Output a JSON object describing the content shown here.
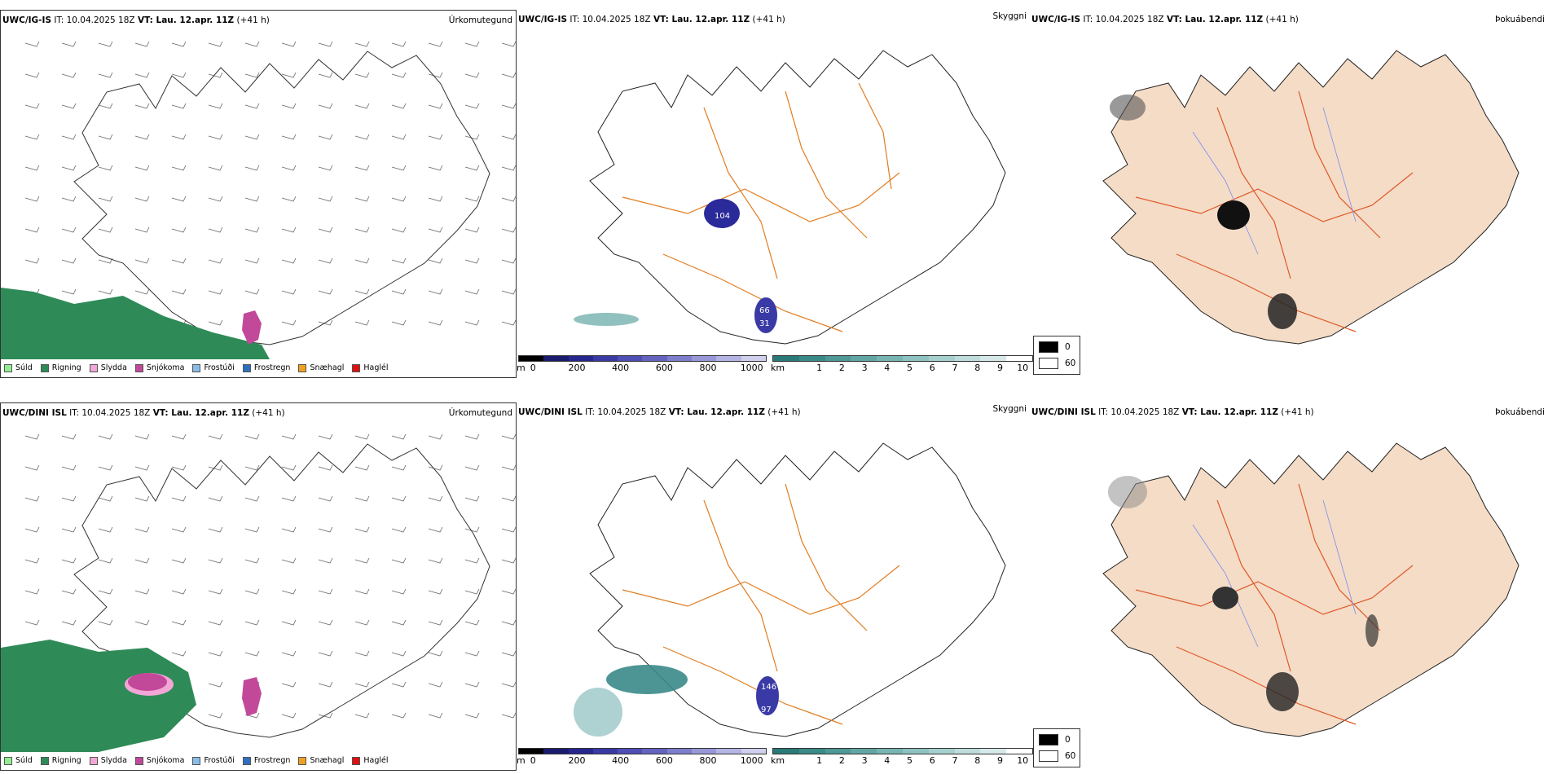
{
  "figure": {
    "rows": [
      {
        "model": "UWC/IG-IS",
        "init": "IT: 10.04.2025 18Z",
        "valid": "VT: Lau. 12.apr. 11Z",
        "lead": "(+41 h)"
      },
      {
        "model": "UWC/DINI ISL",
        "init": "IT: 10.04.2025 18Z",
        "valid": "VT: Lau. 12.apr. 11Z",
        "lead": "(+41 h)"
      }
    ],
    "panel_names": {
      "precip_type": "Úrkomutegund",
      "cloud": "Skyggni",
      "fog": "Þokuábendi"
    }
  },
  "precip_legend": [
    {
      "label": "Súld",
      "color": "#90ee90"
    },
    {
      "label": "Rigning",
      "color": "#2e8b57"
    },
    {
      "label": "Slydda",
      "color": "#f4a6d7"
    },
    {
      "label": "Snjókoma",
      "color": "#c2489a"
    },
    {
      "label": "Frostúði",
      "color": "#87bde8"
    },
    {
      "label": "Frostregn",
      "color": "#2f6fc0"
    },
    {
      "label": "Snæhagl",
      "color": "#f0a020"
    },
    {
      "label": "Haglél",
      "color": "#e01010"
    }
  ],
  "cloud_base_scale": {
    "unit": "m",
    "ticks": [
      "0",
      "200",
      "400",
      "600",
      "800",
      "1000"
    ],
    "colors": [
      "#000000",
      "#1a1a6e",
      "#26268f",
      "#3a3aa6",
      "#4e4eb6",
      "#6464c0",
      "#7e7ecc",
      "#9898d8",
      "#b4b4e4",
      "#d0d0ee"
    ]
  },
  "visibility_scale": {
    "unit": "km",
    "ticks": [
      "1",
      "2",
      "3",
      "4",
      "5",
      "6",
      "7",
      "8",
      "9",
      "10"
    ],
    "colors": [
      "#2a7a78",
      "#3a8a88",
      "#4e9896",
      "#62a6a4",
      "#78b4b2",
      "#8ec2c0",
      "#a6d0ce",
      "#bedcdb",
      "#d6e9e8",
      "#ffffff"
    ]
  },
  "fog_key": [
    {
      "label": "0",
      "color": "#000000"
    },
    {
      "label": "60",
      "color": "#ffffff"
    }
  ],
  "map_labels": {
    "row1": [
      "104",
      "31",
      "66"
    ],
    "row2": [
      "146",
      "97"
    ]
  }
}
